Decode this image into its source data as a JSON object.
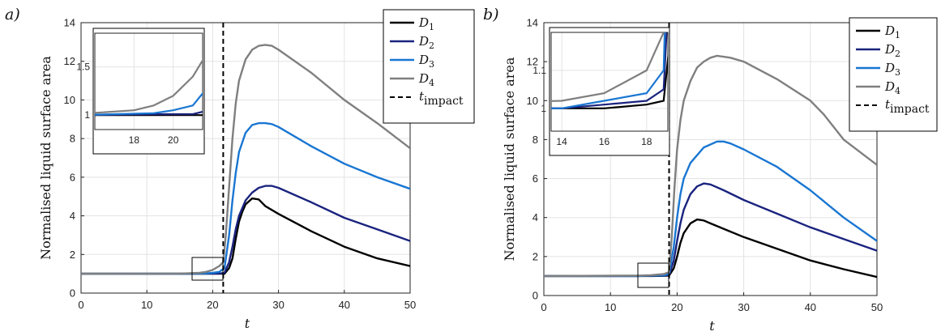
{
  "chart_data": [
    {
      "type": "line",
      "panel_label": "a)",
      "xlabel": "t",
      "ylabel": "Normalised liquid surface area",
      "xlim": [
        0,
        50
      ],
      "ylim": [
        0,
        14
      ],
      "xticks": [
        "0",
        "10",
        "20",
        "30",
        "40",
        "50"
      ],
      "yticks": [
        "0",
        "2",
        "4",
        "6",
        "8",
        "10",
        "12",
        "14"
      ],
      "grid": true,
      "legend_position": "top-right",
      "t_impact": 21.6,
      "series": [
        {
          "name": "D1",
          "sub": "1",
          "color": "#000000",
          "points": [
            [
              0,
              1
            ],
            [
              15,
              1
            ],
            [
              19,
              1
            ],
            [
              20,
              1
            ],
            [
              21,
              1
            ],
            [
              21.8,
              1
            ],
            [
              22.5,
              1.3
            ],
            [
              23,
              1.8
            ],
            [
              23.5,
              2.8
            ],
            [
              24,
              3.7
            ],
            [
              24.5,
              4.2
            ],
            [
              25,
              4.6
            ],
            [
              26,
              4.9
            ],
            [
              27,
              4.85
            ],
            [
              28,
              4.5
            ],
            [
              30,
              4.1
            ],
            [
              35,
              3.2
            ],
            [
              40,
              2.4
            ],
            [
              45,
              1.8
            ],
            [
              50,
              1.4
            ]
          ]
        },
        {
          "name": "D2",
          "sub": "2",
          "color": "#1a237e",
          "points": [
            [
              0,
              1
            ],
            [
              15,
              1
            ],
            [
              19,
              1.01
            ],
            [
              20,
              1.01
            ],
            [
              21,
              1.01
            ],
            [
              21.8,
              1.05
            ],
            [
              22.5,
              1.6
            ],
            [
              23,
              2.4
            ],
            [
              23.5,
              3.3
            ],
            [
              24,
              4.0
            ],
            [
              25,
              4.8
            ],
            [
              26,
              5.2
            ],
            [
              27,
              5.45
            ],
            [
              28,
              5.55
            ],
            [
              29,
              5.55
            ],
            [
              30,
              5.45
            ],
            [
              35,
              4.7
            ],
            [
              40,
              3.9
            ],
            [
              45,
              3.3
            ],
            [
              50,
              2.7
            ]
          ]
        },
        {
          "name": "D3",
          "sub": "3",
          "color": "#1976d2",
          "points": [
            [
              0,
              1
            ],
            [
              15,
              1
            ],
            [
              19,
              1.02
            ],
            [
              20,
              1.05
            ],
            [
              21,
              1.1
            ],
            [
              21.8,
              1.3
            ],
            [
              22.5,
              3
            ],
            [
              23,
              4.8
            ],
            [
              23.5,
              6.2
            ],
            [
              24,
              7.3
            ],
            [
              25,
              8.3
            ],
            [
              26,
              8.7
            ],
            [
              27,
              8.8
            ],
            [
              28,
              8.8
            ],
            [
              29,
              8.75
            ],
            [
              30,
              8.6
            ],
            [
              35,
              7.6
            ],
            [
              40,
              6.7
            ],
            [
              45,
              6.0
            ],
            [
              50,
              5.4
            ]
          ]
        },
        {
          "name": "D4",
          "sub": "4",
          "color": "#7f7f7f",
          "points": [
            [
              0,
              1
            ],
            [
              15,
              1.01
            ],
            [
              18,
              1.05
            ],
            [
              19,
              1.1
            ],
            [
              20,
              1.2
            ],
            [
              21,
              1.4
            ],
            [
              21.6,
              1.6
            ],
            [
              22,
              3
            ],
            [
              22.5,
              5.5
            ],
            [
              23,
              8
            ],
            [
              23.5,
              9.8
            ],
            [
              24,
              11
            ],
            [
              25,
              12.1
            ],
            [
              26,
              12.6
            ],
            [
              27,
              12.8
            ],
            [
              28,
              12.85
            ],
            [
              29,
              12.8
            ],
            [
              30,
              12.6
            ],
            [
              35,
              11.4
            ],
            [
              40,
              10
            ],
            [
              45,
              8.8
            ],
            [
              50,
              7.5
            ]
          ]
        }
      ],
      "inset": {
        "xlim": [
          16,
          21.5
        ],
        "ylim": [
          0.85,
          1.85
        ],
        "xticks": [
          "18",
          "20"
        ],
        "yticks": [
          "1",
          "1.5"
        ]
      }
    },
    {
      "type": "line",
      "panel_label": "b)",
      "xlabel": "t",
      "ylabel": "Normalised liquid surface area",
      "xlim": [
        0,
        50
      ],
      "ylim": [
        0,
        14
      ],
      "xticks": [
        "0",
        "10",
        "20",
        "30",
        "40",
        "50"
      ],
      "yticks": [
        "0",
        "2",
        "4",
        "6",
        "8",
        "10",
        "12",
        "14"
      ],
      "grid": true,
      "legend_position": "top-right",
      "t_impact": 18.8,
      "series": [
        {
          "name": "D1",
          "sub": "1",
          "color": "#000000",
          "points": [
            [
              0,
              1
            ],
            [
              14,
              1
            ],
            [
              16,
              1
            ],
            [
              18,
              1.01
            ],
            [
              18.8,
              1.02
            ],
            [
              19.5,
              1.4
            ],
            [
              20,
              2
            ],
            [
              20.5,
              2.7
            ],
            [
              21,
              3.2
            ],
            [
              22,
              3.7
            ],
            [
              23,
              3.9
            ],
            [
              24,
              3.85
            ],
            [
              25,
              3.7
            ],
            [
              30,
              3
            ],
            [
              35,
              2.4
            ],
            [
              40,
              1.8
            ],
            [
              45,
              1.35
            ],
            [
              50,
              0.95
            ]
          ]
        },
        {
          "name": "D2",
          "sub": "2",
          "color": "#1a237e",
          "points": [
            [
              0,
              1
            ],
            [
              14,
              1
            ],
            [
              16,
              1.01
            ],
            [
              18,
              1.02
            ],
            [
              18.8,
              1.05
            ],
            [
              19.5,
              1.8
            ],
            [
              20,
              2.8
            ],
            [
              20.5,
              3.7
            ],
            [
              21,
              4.4
            ],
            [
              22,
              5.2
            ],
            [
              23,
              5.6
            ],
            [
              24,
              5.75
            ],
            [
              25,
              5.7
            ],
            [
              27,
              5.4
            ],
            [
              30,
              4.9
            ],
            [
              35,
              4.2
            ],
            [
              40,
              3.5
            ],
            [
              45,
              2.9
            ],
            [
              50,
              2.3
            ]
          ]
        },
        {
          "name": "D3",
          "sub": "3",
          "color": "#1976d2",
          "points": [
            [
              0,
              1
            ],
            [
              14,
              1
            ],
            [
              16,
              1.02
            ],
            [
              18,
              1.04
            ],
            [
              18.8,
              1.1
            ],
            [
              19.5,
              2.5
            ],
            [
              20,
              4
            ],
            [
              20.5,
              5.2
            ],
            [
              21,
              6
            ],
            [
              22,
              6.8
            ],
            [
              24,
              7.6
            ],
            [
              26,
              7.9
            ],
            [
              27,
              7.9
            ],
            [
              28,
              7.8
            ],
            [
              30,
              7.5
            ],
            [
              35,
              6.6
            ],
            [
              40,
              5.4
            ],
            [
              45,
              4
            ],
            [
              50,
              2.8
            ]
          ]
        },
        {
          "name": "D4",
          "sub": "4",
          "color": "#7f7f7f",
          "points": [
            [
              0,
              1
            ],
            [
              14,
              1.02
            ],
            [
              16,
              1.04
            ],
            [
              18,
              1.1
            ],
            [
              18.8,
              1.2
            ],
            [
              19.2,
              3
            ],
            [
              19.6,
              5.5
            ],
            [
              20,
              7.5
            ],
            [
              20.5,
              9
            ],
            [
              21,
              10
            ],
            [
              22,
              11
            ],
            [
              23,
              11.7
            ],
            [
              24,
              12
            ],
            [
              25,
              12.2
            ],
            [
              26,
              12.3
            ],
            [
              27,
              12.25
            ],
            [
              28,
              12.2
            ],
            [
              30,
              12
            ],
            [
              35,
              11.1
            ],
            [
              40,
              10
            ],
            [
              42,
              9.3
            ],
            [
              45,
              8
            ],
            [
              50,
              6.7
            ]
          ]
        }
      ],
      "inset": {
        "xlim": [
          13.5,
          19
        ],
        "ylim": [
          0.94,
          1.2
        ],
        "xticks": [
          "14",
          "16",
          "18"
        ],
        "yticks": [
          "1",
          "1.1"
        ]
      }
    }
  ],
  "legend_impact_label": "t",
  "legend_impact_sub": "impact",
  "legend_series_letter": "D"
}
